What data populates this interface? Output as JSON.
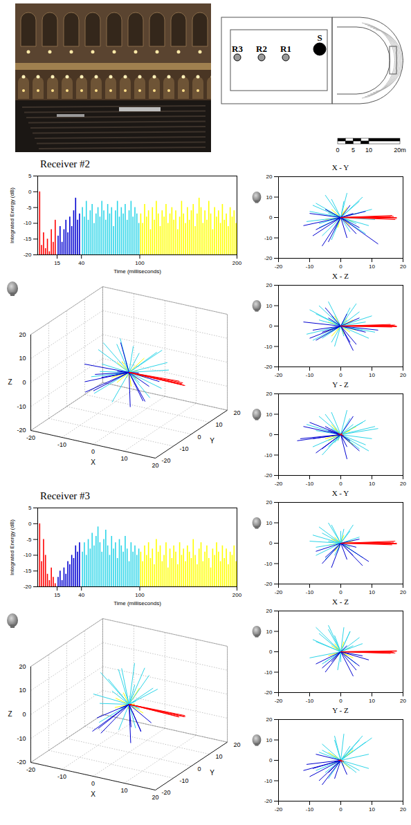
{
  "plan": {
    "labels": [
      "R3",
      "R2",
      "R1",
      "S"
    ]
  },
  "scale_bar": {
    "ticks": [
      0,
      5,
      10,
      {
        "value": 20,
        "label": "20m"
      }
    ]
  },
  "chart_data": [
    {
      "type": "bar",
      "title": "Receiver #2",
      "xlabel": "Time (milliseconds)",
      "ylabel": "Integrated Energy (dB)",
      "xlim": [
        -5,
        200
      ],
      "xticks": [
        15,
        40,
        100,
        200
      ],
      "ylim": [
        -20,
        5
      ],
      "yticks": [
        -20,
        -15,
        -10,
        -5,
        0,
        5
      ],
      "series": [
        {
          "color": "#ff0000",
          "x": [
            -3,
            -1,
            1,
            3,
            5,
            7,
            9,
            11,
            13
          ],
          "values": [
            0,
            -17,
            -13,
            -18,
            -15,
            -19,
            -12,
            -16,
            -9
          ]
        },
        {
          "color": "#0000d0",
          "x": [
            16,
            18,
            20,
            22,
            24,
            26,
            28,
            30,
            32,
            34,
            36,
            38
          ],
          "values": [
            -14,
            -11,
            -16,
            -12,
            -9,
            -13,
            -8,
            -11,
            -6,
            -2,
            -9,
            -7
          ]
        },
        {
          "color": "#2dd5e8",
          "x": [
            41,
            43,
            45,
            47,
            49,
            51,
            53,
            55,
            57,
            59,
            61,
            63,
            65,
            67,
            69,
            71,
            73,
            75,
            77,
            79,
            81,
            83,
            85,
            87,
            89,
            91,
            93,
            95,
            97,
            99
          ],
          "values": [
            -5,
            -8,
            -3,
            -9,
            -6,
            -4,
            -10,
            -7,
            -5,
            -8,
            -3,
            -6,
            -9,
            -4,
            -7,
            -5,
            -11,
            -6,
            -3,
            -8,
            -5,
            -7,
            -4,
            -9,
            -6,
            -3,
            -8,
            -5,
            -7,
            -10
          ]
        },
        {
          "color": "#ffff00",
          "x": [
            101,
            103,
            105,
            107,
            109,
            111,
            113,
            115,
            117,
            119,
            121,
            123,
            125,
            127,
            129,
            131,
            133,
            135,
            137,
            139,
            141,
            143,
            145,
            147,
            149,
            151,
            153,
            155,
            157,
            159,
            161,
            163,
            165,
            167,
            169,
            171,
            173,
            175,
            177,
            179,
            181,
            183,
            185,
            187,
            189,
            191,
            193,
            195,
            197,
            199
          ],
          "values": [
            -7,
            -10,
            -4,
            -8,
            -6,
            -12,
            -5,
            -9,
            -3,
            -7,
            -11,
            -6,
            -8,
            -4,
            -10,
            -7,
            -5,
            -9,
            -6,
            -12,
            -8,
            -3,
            -7,
            -10,
            -5,
            -9,
            -6,
            -4,
            -11,
            -7,
            -2,
            -5,
            -10,
            -6,
            -9,
            -3,
            -7,
            -12,
            -5,
            -8,
            -6,
            -10,
            -4,
            -9,
            -7,
            -11,
            -5,
            -8,
            -6,
            -10
          ]
        }
      ]
    },
    {
      "type": "vector",
      "xlabel": "X",
      "ylabel": "Y",
      "zlabel": "Z",
      "xlim": [
        -20,
        20
      ],
      "ylim": [
        -20,
        20
      ],
      "zlim": [
        -20,
        20
      ],
      "xticks": [
        -20,
        -10,
        0,
        10,
        20
      ],
      "yticks": [
        -20,
        -10,
        0,
        10,
        20
      ],
      "zticks": [
        -20,
        -10,
        0,
        10,
        20
      ],
      "grid": true,
      "panels": [
        "X - Y",
        "X - Z",
        "Y - Z"
      ],
      "series": [
        {
          "color": "#ff0000",
          "vectors": [
            [
              17,
              0.5,
              0.3
            ],
            [
              18,
              -0.5,
              0
            ],
            [
              16.5,
              1,
              -0.5
            ],
            [
              17.5,
              -1,
              0.5
            ],
            [
              18,
              0,
              -0.3
            ],
            [
              16,
              0.3,
              0.8
            ]
          ]
        },
        {
          "color": "#0000d0",
          "vectors": [
            [
              12,
              -13,
              -2
            ],
            [
              -8,
              -6,
              -7
            ],
            [
              -6,
              -14,
              -3
            ],
            [
              -10,
              2,
              -6
            ],
            [
              5,
              -8,
              -9
            ],
            [
              -4,
              -12,
              4
            ],
            [
              3,
              6,
              -8
            ],
            [
              8,
              3,
              -3
            ],
            [
              -12,
              -4,
              2
            ],
            [
              2,
              -10,
              6
            ],
            [
              -5,
              4,
              9
            ],
            [
              6,
              -5,
              4
            ],
            [
              -9,
              -9,
              -2
            ],
            [
              4,
              2,
              -12
            ]
          ]
        },
        {
          "color": "#2dd5e8",
          "vectors": [
            [
              -8,
              7,
              6
            ],
            [
              -5,
              11,
              4
            ],
            [
              -10,
              3,
              8
            ],
            [
              6,
              8,
              7
            ],
            [
              3,
              -7,
              9
            ],
            [
              -7,
              -5,
              10
            ],
            [
              9,
              -4,
              -6
            ],
            [
              -3,
              9,
              -8
            ],
            [
              7,
              10,
              -2
            ],
            [
              -11,
              -2,
              -4
            ],
            [
              2,
              12,
              3
            ],
            [
              -6,
              -9,
              -6
            ],
            [
              10,
              4,
              5
            ],
            [
              -2,
              -6,
              -10
            ],
            [
              5,
              -3,
              11
            ],
            [
              -9,
              6,
              -7
            ],
            [
              8,
              -8,
              2
            ],
            [
              -4,
              2,
              12
            ],
            [
              1,
              8,
              -5
            ],
            [
              -7,
              -3,
              3
            ],
            [
              11,
              -1,
              -3
            ],
            [
              -3,
              -11,
              5
            ]
          ]
        },
        {
          "color": "#ffff00",
          "vectors": [
            [
              -4,
              3,
              2
            ],
            [
              3,
              -4,
              -3
            ],
            [
              -2,
              -3,
              5
            ],
            [
              5,
              2,
              -2
            ],
            [
              -5,
              -1,
              -3
            ],
            [
              2,
              5,
              4
            ],
            [
              -3,
              4,
              -5
            ],
            [
              4,
              -2,
              3
            ],
            [
              -1,
              -5,
              -2
            ],
            [
              1,
              3,
              -4
            ]
          ]
        }
      ]
    },
    {
      "type": "bar",
      "title": "Receiver #3",
      "xlabel": "Time (milliseconds)",
      "ylabel": "Integrated Energy (dB)",
      "xlim": [
        -5,
        200
      ],
      "xticks": [
        15,
        40,
        100,
        200
      ],
      "ylim": [
        -20,
        5
      ],
      "yticks": [
        -20,
        -15,
        -10,
        -5,
        0,
        5
      ],
      "series": [
        {
          "color": "#ff0000",
          "x": [
            -3,
            -1,
            1,
            3,
            5,
            7,
            9,
            11,
            13
          ],
          "values": [
            0,
            -12,
            -5,
            -10,
            -16,
            -18,
            -14,
            -17,
            -19
          ]
        },
        {
          "color": "#0000d0",
          "x": [
            16,
            18,
            20,
            22,
            24,
            26,
            28,
            30,
            32,
            34,
            36,
            38
          ],
          "values": [
            -17,
            -15,
            -18,
            -14,
            -16,
            -12,
            -13,
            -10,
            -11,
            -7,
            -9,
            -6
          ]
        },
        {
          "color": "#2dd5e8",
          "x": [
            41,
            43,
            45,
            47,
            49,
            51,
            53,
            55,
            57,
            59,
            61,
            63,
            65,
            67,
            69,
            71,
            73,
            75,
            77,
            79,
            81,
            83,
            85,
            87,
            89,
            91,
            93,
            95,
            97,
            99
          ],
          "values": [
            -9,
            -6,
            -10,
            -5,
            -8,
            -3,
            -7,
            -4,
            -1,
            -6,
            -9,
            -5,
            -2,
            -7,
            -10,
            -4,
            -8,
            -6,
            -11,
            -5,
            -7,
            -9,
            -4,
            -8,
            -12,
            -6,
            -9,
            -7,
            -10,
            -8
          ]
        },
        {
          "color": "#ffff00",
          "x": [
            101,
            103,
            105,
            107,
            109,
            111,
            113,
            115,
            117,
            119,
            121,
            123,
            125,
            127,
            129,
            131,
            133,
            135,
            137,
            139,
            141,
            143,
            145,
            147,
            149,
            151,
            153,
            155,
            157,
            159,
            161,
            163,
            165,
            167,
            169,
            171,
            173,
            175,
            177,
            179,
            181,
            183,
            185,
            187,
            189,
            191,
            193,
            195,
            197,
            199
          ],
          "values": [
            -9,
            -12,
            -7,
            -10,
            -6,
            -11,
            -8,
            -13,
            -5,
            -9,
            -7,
            -12,
            -10,
            -6,
            -14,
            -8,
            -11,
            -7,
            -9,
            -13,
            -6,
            -10,
            -8,
            -12,
            -7,
            -9,
            -11,
            -5,
            -10,
            -13,
            -8,
            -6,
            -12,
            -9,
            -7,
            -11,
            -14,
            -8,
            -10,
            -6,
            -9,
            -12,
            -7,
            -11,
            -8,
            -13,
            -9,
            -10,
            -7,
            -12
          ]
        }
      ]
    },
    {
      "type": "vector",
      "xlabel": "X",
      "ylabel": "Y",
      "zlabel": "Z",
      "xlim": [
        -20,
        20
      ],
      "ylim": [
        -20,
        20
      ],
      "zlim": [
        -20,
        20
      ],
      "xticks": [
        -20,
        -10,
        0,
        10,
        20
      ],
      "yticks": [
        -20,
        -10,
        0,
        10,
        20
      ],
      "zticks": [
        -20,
        -10,
        0,
        10,
        20
      ],
      "grid": true,
      "panels": [
        "X - Y",
        "X - Z",
        "Y - Z"
      ],
      "series": [
        {
          "color": "#ff0000",
          "vectors": [
            [
              17,
              0.5,
              -0.3
            ],
            [
              18,
              0,
              0.5
            ],
            [
              16.5,
              -0.8,
              0
            ],
            [
              17.5,
              1,
              -0.6
            ],
            [
              18,
              -0.4,
              0.2
            ],
            [
              16,
              0.2,
              -0.8
            ]
          ]
        },
        {
          "color": "#0000d0",
          "vectors": [
            [
              9,
              -9,
              -4
            ],
            [
              7,
              -11,
              -2
            ],
            [
              -6,
              -10,
              -8
            ],
            [
              4,
              -6,
              -12
            ],
            [
              -3,
              -12,
              -5
            ],
            [
              5,
              -2,
              -9
            ],
            [
              -8,
              -4,
              -6
            ],
            [
              2,
              -8,
              3
            ],
            [
              6,
              2,
              -7
            ],
            [
              -5,
              -7,
              -10
            ]
          ]
        },
        {
          "color": "#2dd5e8",
          "vectors": [
            [
              -7,
              8,
              9
            ],
            [
              -4,
              10,
              11
            ],
            [
              -9,
              4,
              6
            ],
            [
              3,
              6,
              10
            ],
            [
              -2,
              -6,
              8
            ],
            [
              -8,
              -2,
              12
            ],
            [
              5,
              -5,
              -6
            ],
            [
              -3,
              9,
              -4
            ],
            [
              4,
              9,
              3
            ],
            [
              -10,
              1,
              -3
            ],
            [
              1,
              7,
              12
            ],
            [
              -5,
              -8,
              -5
            ],
            [
              6,
              3,
              7
            ],
            [
              -1,
              -4,
              -9
            ],
            [
              3,
              -2,
              10
            ],
            [
              -6,
              5,
              -6
            ],
            [
              7,
              -7,
              4
            ],
            [
              -4,
              1,
              13
            ],
            [
              0,
              6,
              -5
            ],
            [
              -8,
              -6,
              5
            ]
          ]
        },
        {
          "color": "#ffff00",
          "vectors": [
            [
              -3,
              2,
              3
            ],
            [
              2,
              -3,
              -2
            ],
            [
              -2,
              -4,
              4
            ],
            [
              4,
              1,
              -3
            ],
            [
              -4,
              -1,
              -2
            ],
            [
              1,
              4,
              5
            ],
            [
              -2,
              3,
              -4
            ],
            [
              3,
              -2,
              2
            ]
          ]
        }
      ]
    }
  ]
}
